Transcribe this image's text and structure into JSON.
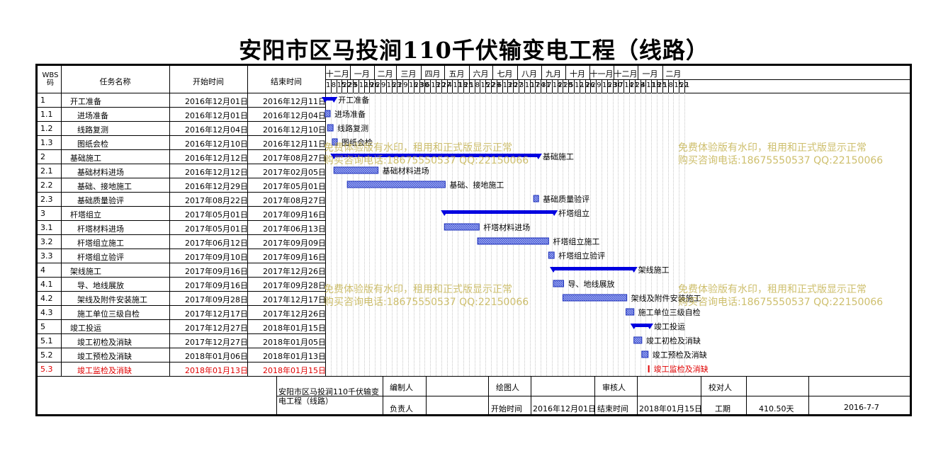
{
  "title": "安阳市区马投涧110千伏输变电工程（线路）",
  "header": {
    "wbs": "WBS码",
    "name": "任务名称",
    "start": "开始时间",
    "end": "结束时间"
  },
  "timeline": {
    "months": [
      "十二月",
      "一月",
      "二月",
      "三月",
      "四月",
      "五月",
      "六月",
      "七月",
      "八月",
      "九月",
      "十月",
      "十一月",
      "十二月",
      "一月",
      "二月"
    ],
    "days": [
      "1",
      "8",
      "15",
      "22",
      "29",
      "5",
      "12",
      "19",
      "26",
      "2",
      "9",
      "16",
      "23",
      "2",
      "9",
      "16",
      "23",
      "30",
      "6",
      "13",
      "20",
      "27",
      "4",
      "11",
      "18",
      "25",
      "1",
      "8",
      "15",
      "22",
      "29",
      "6",
      "13",
      "20",
      "27",
      "3",
      "10",
      "17",
      "24",
      "31",
      "7",
      "14",
      "21",
      "28",
      "5",
      "12",
      "19",
      "26",
      "2",
      "9",
      "16",
      "23",
      "30",
      "7",
      "14",
      "21",
      "28",
      "4",
      "11",
      "18",
      "25",
      "1",
      "8",
      "15",
      "22",
      "1"
    ]
  },
  "tasks": [
    {
      "wbs": "1",
      "name": "开工准备",
      "start": "2016年12月01日",
      "end": "2016年12月11日",
      "level": 0,
      "summary": true
    },
    {
      "wbs": "1.1",
      "name": "进场准备",
      "start": "2016年12月01日",
      "end": "2016年12月04日",
      "level": 1
    },
    {
      "wbs": "1.2",
      "name": "线路复测",
      "start": "2016年12月04日",
      "end": "2016年12月10日",
      "level": 1
    },
    {
      "wbs": "1.3",
      "name": "图纸会检",
      "start": "2016年12月10日",
      "end": "2016年12月11日",
      "level": 1
    },
    {
      "wbs": "2",
      "name": "基础施工",
      "start": "2016年12月12日",
      "end": "2017年08月27日",
      "level": 0,
      "summary": true
    },
    {
      "wbs": "2.1",
      "name": "基础材料进场",
      "start": "2016年12月12日",
      "end": "2017年02月05日",
      "level": 1
    },
    {
      "wbs": "2.2",
      "name": "基础、接地施工",
      "start": "2016年12月29日",
      "end": "2017年05月01日",
      "level": 1
    },
    {
      "wbs": "2.3",
      "name": "基础质量验评",
      "start": "2017年08月22日",
      "end": "2017年08月27日",
      "level": 1
    },
    {
      "wbs": "3",
      "name": "杆塔组立",
      "start": "2017年05月01日",
      "end": "2017年09月16日",
      "level": 0,
      "summary": true
    },
    {
      "wbs": "3.1",
      "name": "杆塔材料进场",
      "start": "2017年05月01日",
      "end": "2017年06月13日",
      "level": 1
    },
    {
      "wbs": "3.2",
      "name": "杆塔组立施工",
      "start": "2017年06月12日",
      "end": "2017年09月09日",
      "level": 1
    },
    {
      "wbs": "3.3",
      "name": "杆塔组立验评",
      "start": "2017年09月10日",
      "end": "2017年09月16日",
      "level": 1
    },
    {
      "wbs": "4",
      "name": "架线施工",
      "start": "2017年09月16日",
      "end": "2017年12月26日",
      "level": 0,
      "summary": true
    },
    {
      "wbs": "4.1",
      "name": "导、地线展放",
      "start": "2017年09月16日",
      "end": "2017年09月28日",
      "level": 1
    },
    {
      "wbs": "4.2",
      "name": "架线及附件安装施工",
      "start": "2017年09月28日",
      "end": "2017年12月17日",
      "level": 1
    },
    {
      "wbs": "4.3",
      "name": "施工单位三级自检",
      "start": "2017年12月17日",
      "end": "2017年12月26日",
      "level": 1
    },
    {
      "wbs": "5",
      "name": "竣工投运",
      "start": "2017年12月27日",
      "end": "2018年01月15日",
      "level": 0,
      "summary": true
    },
    {
      "wbs": "5.1",
      "name": "竣工初检及消缺",
      "start": "2017年12月27日",
      "end": "2018年01月05日",
      "level": 1
    },
    {
      "wbs": "5.2",
      "name": "竣工预检及消缺",
      "start": "2018年01月06日",
      "end": "2018年01月13日",
      "level": 1
    },
    {
      "wbs": "5.3",
      "name": "竣工监检及消缺",
      "start": "2018年01月13日",
      "end": "2018年01月15日",
      "level": 1,
      "critical": true
    }
  ],
  "chart_data": {
    "type": "gantt",
    "x_axis_start": "2016-12-01",
    "bars": [
      {
        "task": "开工准备",
        "start": "2016-12-01",
        "end": "2016-12-11",
        "summary": true
      },
      {
        "task": "进场准备",
        "start": "2016-12-01",
        "end": "2016-12-04"
      },
      {
        "task": "线路复测",
        "start": "2016-12-04",
        "end": "2016-12-10"
      },
      {
        "task": "图纸会检",
        "start": "2016-12-10",
        "end": "2016-12-11"
      },
      {
        "task": "基础施工",
        "start": "2016-12-12",
        "end": "2017-08-27",
        "summary": true
      },
      {
        "task": "基础材料进场",
        "start": "2016-12-12",
        "end": "2017-02-05"
      },
      {
        "task": "基础、接地施工",
        "start": "2016-12-29",
        "end": "2017-05-01"
      },
      {
        "task": "基础质量验评",
        "start": "2017-08-22",
        "end": "2017-08-27"
      },
      {
        "task": "杆塔组立",
        "start": "2017-05-01",
        "end": "2017-09-16",
        "summary": true
      },
      {
        "task": "杆塔材料进场",
        "start": "2017-05-01",
        "end": "2017-06-13"
      },
      {
        "task": "杆塔组立施工",
        "start": "2017-06-12",
        "end": "2017-09-09"
      },
      {
        "task": "杆塔组立验评",
        "start": "2017-09-10",
        "end": "2017-09-16"
      },
      {
        "task": "架线施工",
        "start": "2017-09-16",
        "end": "2017-12-26",
        "summary": true
      },
      {
        "task": "导、地线展放",
        "start": "2017-09-16",
        "end": "2017-09-28"
      },
      {
        "task": "架线及附件安装施工",
        "start": "2017-09-28",
        "end": "2017-12-17"
      },
      {
        "task": "施工单位三级自检",
        "start": "2017-12-17",
        "end": "2017-12-26"
      },
      {
        "task": "竣工投运",
        "start": "2017-12-27",
        "end": "2018-01-15",
        "summary": true
      },
      {
        "task": "竣工初检及消缺",
        "start": "2017-12-27",
        "end": "2018-01-05"
      },
      {
        "task": "竣工预检及消缺",
        "start": "2018-01-06",
        "end": "2018-01-13"
      },
      {
        "task": "竣工监检及消缺",
        "start": "2018-01-13",
        "end": "2018-01-15",
        "critical": true
      }
    ],
    "colors": {
      "summary": "#0000e0",
      "task_fill": "#8899ee",
      "task_border": "#1a2db8",
      "critical": "#e00000"
    }
  },
  "watermark": {
    "line1": "免费体验版有水印，租用和正式版显示正常",
    "line2": "购买咨询电话:18675550537 QQ:22150066"
  },
  "footer": {
    "project": "安阳市区马投涧110千伏输变电工程（线路）",
    "editor_label": "编制人",
    "drawer_label": "绘图人",
    "reviewer_label": "审核人",
    "checker_label": "校对人",
    "owner_label": "负责人",
    "start_label": "开始时间",
    "start_value": "2016年12月01日",
    "end_label": "结束时间",
    "end_value": "2018年01月15日",
    "duration_label": "工期",
    "duration_value": "410.50天",
    "date_value": "2016-7-7"
  }
}
